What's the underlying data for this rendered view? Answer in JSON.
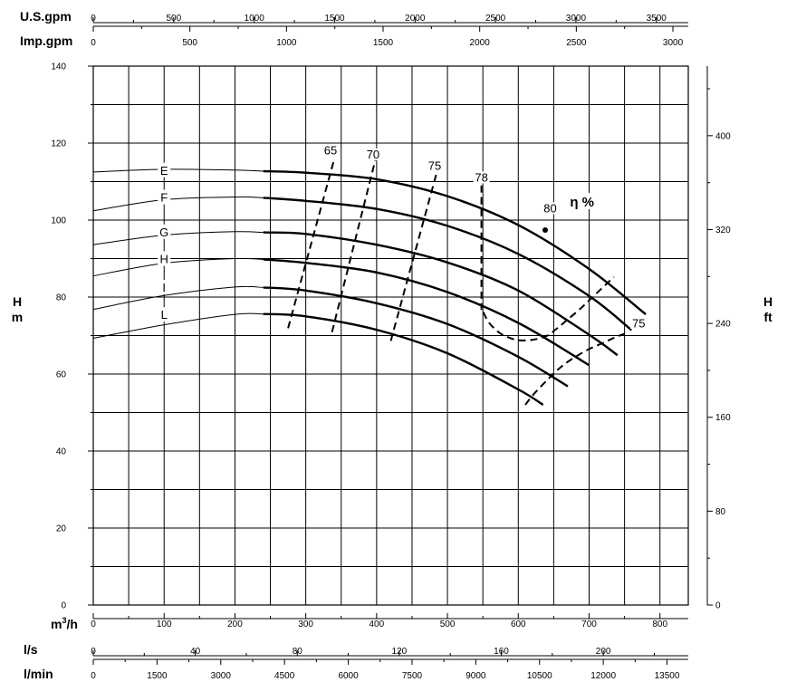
{
  "chart_data": {
    "type": "line",
    "x": {
      "label_html": "m3/h",
      "label_base": "m",
      "label_sup": "3",
      "label_tail": "/h",
      "range": [
        0,
        840
      ],
      "ticks": [
        "0",
        "100",
        "200",
        "300",
        "400",
        "500",
        "600",
        "700",
        "800"
      ],
      "tick_values": [
        0,
        100,
        200,
        300,
        400,
        500,
        600,
        700,
        800
      ]
    },
    "y_left": {
      "label_top": "H",
      "label_bottom": "m",
      "range": [
        0,
        140
      ],
      "ticks": [
        "0",
        "20",
        "40",
        "60",
        "80",
        "100",
        "120",
        "140"
      ],
      "tick_values": [
        0,
        20,
        40,
        60,
        80,
        100,
        120,
        140
      ]
    },
    "y_right": {
      "label_top": "H",
      "label_bottom": "ft",
      "ticks": [
        "0",
        "80",
        "160",
        "240",
        "320",
        "400"
      ],
      "tick_values_ft": [
        0,
        80,
        160,
        240,
        320,
        400
      ],
      "ft_per_m": 3.28084
    },
    "secondary_axes": [
      {
        "label": "U.S.gpm",
        "position": "top",
        "per_m3h": 4.40287,
        "ticks": [
          "0",
          "500",
          "1000",
          "1500",
          "2000",
          "2500",
          "3000",
          "3500"
        ],
        "tick_values": [
          0,
          500,
          1000,
          1500,
          2000,
          2500,
          3000,
          3500
        ]
      },
      {
        "label": "Imp.gpm",
        "position": "top",
        "per_m3h": 3.66615,
        "ticks": [
          "0",
          "500",
          "1000",
          "1500",
          "2000",
          "2500",
          "3000"
        ],
        "tick_values": [
          0,
          500,
          1000,
          1500,
          2000,
          2500,
          3000
        ]
      },
      {
        "label": "l/s",
        "position": "bottom",
        "per_m3h": 0.277778,
        "ticks": [
          "0",
          "40",
          "80",
          "120",
          "160",
          "200"
        ],
        "tick_values": [
          0,
          40,
          80,
          120,
          160,
          200
        ]
      },
      {
        "label": "l/min",
        "position": "bottom",
        "per_m3h": 16.6667,
        "ticks": [
          "0",
          "1500",
          "3000",
          "4500",
          "6000",
          "7500",
          "9000",
          "10500",
          "12000",
          "13500"
        ],
        "tick_values": [
          0,
          1500,
          3000,
          4500,
          6000,
          7500,
          9000,
          10500,
          12000,
          13500
        ]
      }
    ],
    "series": [
      {
        "name": "E",
        "label_x": 200,
        "thin_end": 240,
        "x": [
          0,
          100,
          200,
          240,
          300,
          400,
          500,
          600,
          700,
          780
        ],
        "y": [
          112.5,
          113.2,
          113.0,
          112.7,
          112.3,
          110.6,
          106.2,
          98.7,
          87.3,
          75.5
        ]
      },
      {
        "name": "F",
        "label_x": 200,
        "thin_end": 240,
        "x": [
          0,
          100,
          200,
          240,
          300,
          400,
          500,
          600,
          700,
          760
        ],
        "y": [
          102.4,
          105.3,
          106.0,
          105.8,
          105.0,
          102.9,
          98.5,
          91.2,
          80.3,
          71.4
        ]
      },
      {
        "name": "G",
        "label_x": 200,
        "thin_end": 240,
        "x": [
          0,
          100,
          200,
          240,
          300,
          400,
          500,
          600,
          700,
          740
        ],
        "y": [
          93.6,
          96.1,
          97.0,
          96.8,
          96.4,
          93.6,
          89.0,
          81.7,
          70.2,
          64.9
        ]
      },
      {
        "name": "H",
        "label_x": 200,
        "thin_end": 240,
        "x": [
          0,
          100,
          200,
          240,
          300,
          400,
          500,
          600,
          700
        ],
        "y": [
          85.5,
          88.8,
          90.0,
          89.8,
          88.9,
          86.4,
          81.3,
          73.3,
          62.3
        ]
      },
      {
        "name": "I",
        "label_x": 200,
        "thin_end": 240,
        "x": [
          0,
          100,
          200,
          240,
          300,
          400,
          500,
          600,
          670
        ],
        "y": [
          76.8,
          80.4,
          82.6,
          82.5,
          81.7,
          78.4,
          73.0,
          64.5,
          56.8
        ]
      },
      {
        "name": "L",
        "label_x": 200,
        "thin_end": 240,
        "x": [
          0,
          100,
          200,
          240,
          300,
          400,
          500,
          600,
          635
        ],
        "y": [
          69.3,
          72.8,
          75.5,
          75.6,
          75.0,
          71.5,
          65.4,
          56.0,
          52.0
        ]
      }
    ],
    "efficiency": {
      "label": "η %",
      "isolines": [
        {
          "name": "65",
          "label_x": 335,
          "label_y": 117.5,
          "x": [
            275,
            340
          ],
          "y": [
            71.9,
            115.7
          ]
        },
        {
          "name": "70",
          "label_x": 395,
          "label_y": 116.5,
          "x": [
            337,
            398
          ],
          "y": [
            70.9,
            115.5
          ]
        },
        {
          "name": "75",
          "label_x": 482,
          "label_y": 113.5,
          "x": [
            420,
            485
          ],
          "y": [
            68.6,
            112.4
          ]
        },
        {
          "name": "78",
          "label_x": 548,
          "label_y": 110.5,
          "x": [
            548,
            548,
            549,
            557,
            567,
            576,
            585,
            600,
            620,
            640,
            655,
            670,
            690,
            710,
            735
          ],
          "y": [
            109.0,
            80.0,
            77.0,
            73.8,
            71.7,
            70.4,
            69.6,
            68.8,
            68.9,
            69.9,
            71.9,
            74.2,
            77.4,
            80.9,
            85.2
          ]
        },
        {
          "name": "75",
          "label_x": 770,
          "label_y": 72.6,
          "x": [
            610,
            620,
            640,
            660,
            680,
            700,
            720,
            735,
            750
          ],
          "y": [
            52.0,
            54.4,
            58.3,
            61.8,
            64.4,
            66.5,
            68.1,
            69.4,
            70.5
          ]
        }
      ],
      "point": {
        "name": "80",
        "label_x": 645,
        "label_y": 102.5,
        "x": 638,
        "y": 97.4
      }
    }
  }
}
